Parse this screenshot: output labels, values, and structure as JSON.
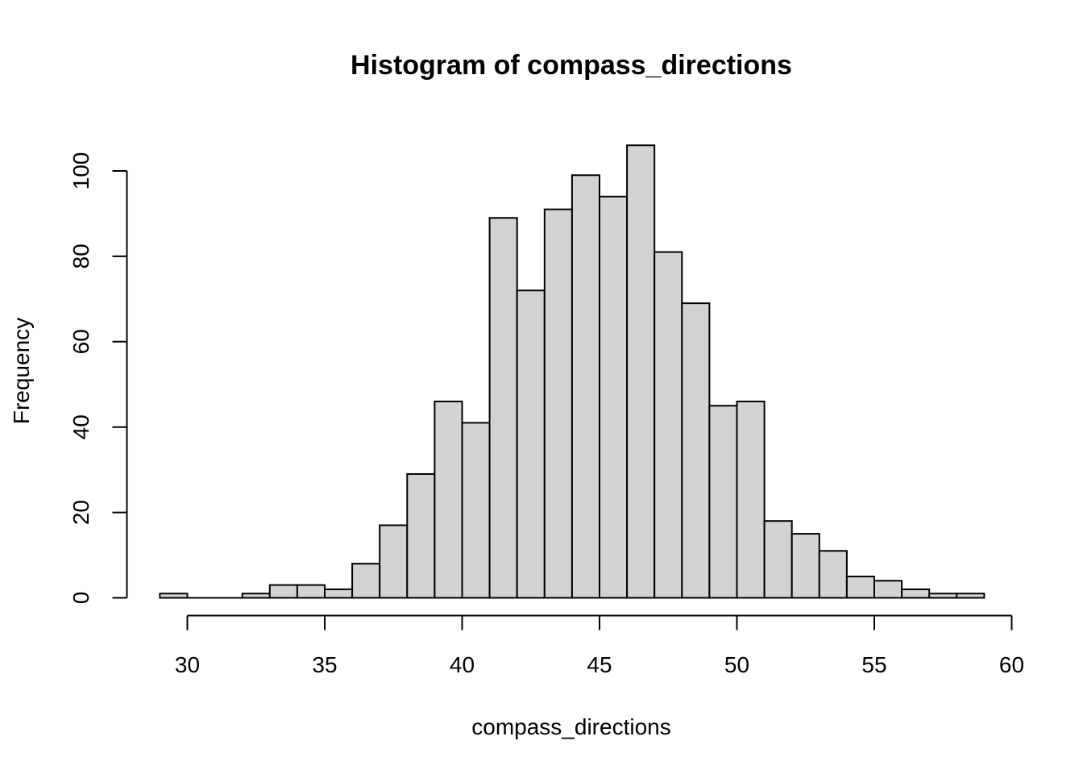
{
  "chart_data": {
    "type": "bar",
    "title": "Histogram of compass_directions",
    "xlabel": "compass_directions",
    "ylabel": "Frequency",
    "bin_width": 1,
    "bins": [
      {
        "start": 29,
        "end": 30,
        "count": 1
      },
      {
        "start": 30,
        "end": 31,
        "count": 0
      },
      {
        "start": 31,
        "end": 32,
        "count": 0
      },
      {
        "start": 32,
        "end": 33,
        "count": 1
      },
      {
        "start": 33,
        "end": 34,
        "count": 3
      },
      {
        "start": 34,
        "end": 35,
        "count": 3
      },
      {
        "start": 35,
        "end": 36,
        "count": 2
      },
      {
        "start": 36,
        "end": 37,
        "count": 8
      },
      {
        "start": 37,
        "end": 38,
        "count": 17
      },
      {
        "start": 38,
        "end": 39,
        "count": 29
      },
      {
        "start": 39,
        "end": 40,
        "count": 46
      },
      {
        "start": 40,
        "end": 41,
        "count": 41
      },
      {
        "start": 41,
        "end": 42,
        "count": 89
      },
      {
        "start": 42,
        "end": 43,
        "count": 72
      },
      {
        "start": 43,
        "end": 44,
        "count": 91
      },
      {
        "start": 44,
        "end": 45,
        "count": 99
      },
      {
        "start": 45,
        "end": 46,
        "count": 94
      },
      {
        "start": 46,
        "end": 47,
        "count": 106
      },
      {
        "start": 47,
        "end": 48,
        "count": 81
      },
      {
        "start": 48,
        "end": 49,
        "count": 69
      },
      {
        "start": 49,
        "end": 50,
        "count": 45
      },
      {
        "start": 50,
        "end": 51,
        "count": 46
      },
      {
        "start": 51,
        "end": 52,
        "count": 18
      },
      {
        "start": 52,
        "end": 53,
        "count": 15
      },
      {
        "start": 53,
        "end": 54,
        "count": 11
      },
      {
        "start": 54,
        "end": 55,
        "count": 5
      },
      {
        "start": 55,
        "end": 56,
        "count": 4
      },
      {
        "start": 56,
        "end": 57,
        "count": 2
      },
      {
        "start": 57,
        "end": 58,
        "count": 1
      },
      {
        "start": 58,
        "end": 59,
        "count": 1
      }
    ],
    "xlim": [
      30,
      60
    ],
    "ylim": [
      0,
      100
    ],
    "x_ticks": [
      30,
      35,
      40,
      45,
      50,
      55,
      60
    ],
    "y_ticks": [
      0,
      20,
      40,
      60,
      80,
      100
    ],
    "grid": false,
    "legend": "none",
    "colors": {
      "bar_fill": "#d3d3d3",
      "bar_stroke": "#000000"
    }
  }
}
